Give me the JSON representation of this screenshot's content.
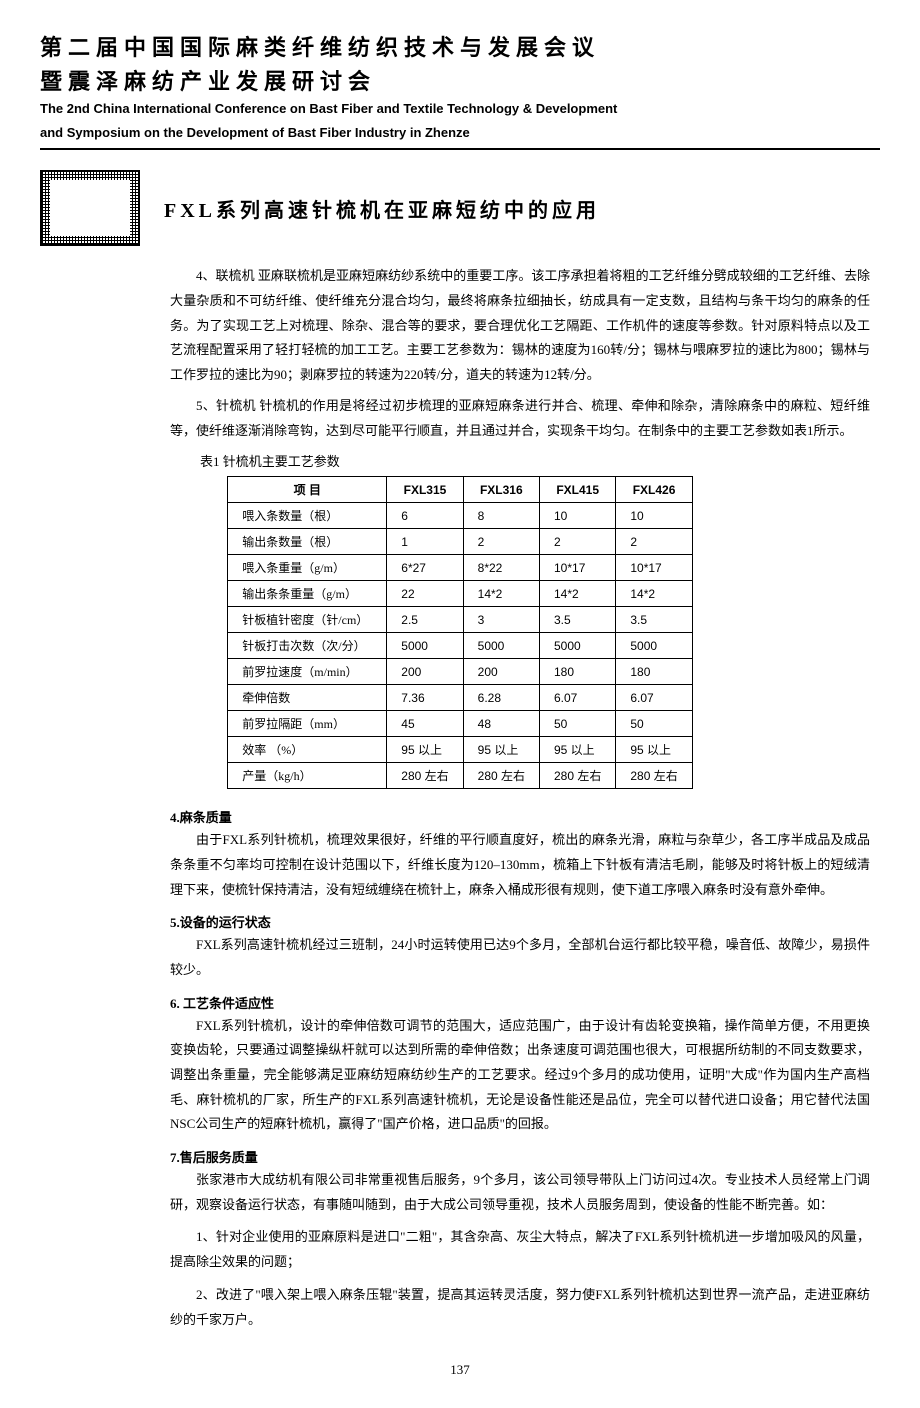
{
  "header": {
    "cn_line1": "第二届中国国际麻类纤维纺织技术与发展会议",
    "cn_line2": "暨震泽麻纺产业发展研讨会",
    "en_line1": "The 2nd China International Conference on Bast Fiber and Textile Technology & Development",
    "en_line2": "and Symposium on the Development of Bast Fiber Industry in Zhenze"
  },
  "article_title": "FXL系列高速针梳机在亚麻短纺中的应用",
  "para4": "4、联梳机 亚麻联梳机是亚麻短麻纺纱系统中的重要工序。该工序承担着将粗的工艺纤维分劈成较细的工艺纤维、去除大量杂质和不可纺纤维、使纤维充分混合均匀，最终将麻条拉细抽长，纺成具有一定支数，且结构与条干均匀的麻条的任务。为了实现工艺上对梳理、除杂、混合等的要求，要合理优化工艺隔距、工作机件的速度等参数。针对原料特点以及工艺流程配置采用了轻打轻梳的加工工艺。主要工艺参数为：锡林的速度为160转/分；锡林与喂麻罗拉的速比为800；锡林与工作罗拉的速比为90；剥麻罗拉的转速为220转/分，道夫的转速为12转/分。",
  "para5": "5、针梳机 针梳机的作用是将经过初步梳理的亚麻短麻条进行并合、梳理、牵伸和除杂，清除麻条中的麻粒、短纤维等，使纤维逐渐消除弯钩，达到尽可能平行顺直，并且通过并合，实现条干均匀。在制条中的主要工艺参数如表1所示。",
  "table": {
    "caption": "表1  针梳机主要工艺参数",
    "columns": [
      "项    目",
      "FXL315",
      "FXL316",
      "FXL415",
      "FXL426"
    ],
    "rows": [
      [
        "喂入条数量（根）",
        "6",
        "8",
        "10",
        "10"
      ],
      [
        "输出条数量（根）",
        "1",
        "2",
        "2",
        "2"
      ],
      [
        "喂入条重量（g/m）",
        "6*27",
        "8*22",
        "10*17",
        "10*17"
      ],
      [
        "输出条条重量（g/m）",
        "22",
        "14*2",
        "14*2",
        "14*2"
      ],
      [
        "针板植针密度（针/cm）",
        "2.5",
        "3",
        "3.5",
        "3.5"
      ],
      [
        "针板打击次数（次/分）",
        "5000",
        "5000",
        "5000",
        "5000"
      ],
      [
        "前罗拉速度（m/min）",
        "200",
        "200",
        "180",
        "180"
      ],
      [
        "牵伸倍数",
        "7.36",
        "6.28",
        "6.07",
        "6.07"
      ],
      [
        "前罗拉隔距（mm）",
        "45",
        "48",
        "50",
        "50"
      ],
      [
        "效率    （%）",
        "95 以上",
        "95 以上",
        "95 以上",
        "95 以上"
      ],
      [
        "产量（kg/h）",
        "280 左右",
        "280 左右",
        "280 左右",
        "280 左右"
      ]
    ]
  },
  "sections": {
    "s4": {
      "heading": "4.麻条质量",
      "body": "由于FXL系列针梳机，梳理效果很好，纤维的平行顺直度好，梳出的麻条光滑，麻粒与杂草少，各工序半成品及成品条条重不匀率均可控制在设计范围以下，纤维长度为120–130mm，梳箱上下针板有清洁毛刷，能够及时将针板上的短绒清理下来，使梳针保持清洁，没有短绒缠绕在梳针上，麻条入桶成形很有规则，使下道工序喂入麻条时没有意外牵伸。"
    },
    "s5": {
      "heading": "5.设备的运行状态",
      "body": "FXL系列高速针梳机经过三班制，24小时运转使用已达9个多月，全部机台运行都比较平稳，噪音低、故障少，易损件较少。"
    },
    "s6": {
      "heading": "6. 工艺条件适应性",
      "body": "FXL系列针梳机，设计的牵伸倍数可调节的范围大，适应范围广，由于设计有齿轮变换箱，操作简单方便，不用更换变换齿轮，只要通过调整操纵杆就可以达到所需的牵伸倍数；出条速度可调范围也很大，可根据所纺制的不同支数要求，调整出条重量，完全能够满足亚麻纺短麻纺纱生产的工艺要求。经过9个多月的成功使用，证明\"大成\"作为国内生产高档毛、麻针梳机的厂家，所生产的FXL系列高速针梳机，无论是设备性能还是品位，完全可以替代进口设备；用它替代法国NSC公司生产的短麻针梳机，赢得了\"国产价格，进口品质\"的回报。"
    },
    "s7": {
      "heading": "7.售后服务质量",
      "body1": "张家港市大成纺机有限公司非常重视售后服务，9个多月，该公司领导带队上门访问过4次。专业技术人员经常上门调研，观察设备运行状态，有事随叫随到，由于大成公司领导重视，技术人员服务周到，使设备的性能不断完善。如：",
      "body2": "1、针对企业使用的亚麻原料是进口\"二粗\"，其含杂高、灰尘大特点，解决了FXL系列针梳机进一步增加吸风的风量，提高除尘效果的问题；",
      "body3": "2、改进了\"喂入架上喂入麻条压辊\"装置，提高其运转灵活度，努力使FXL系列针梳机达到世界一流产品，走进亚麻纺纱的千家万户。"
    }
  },
  "page_number": "137"
}
